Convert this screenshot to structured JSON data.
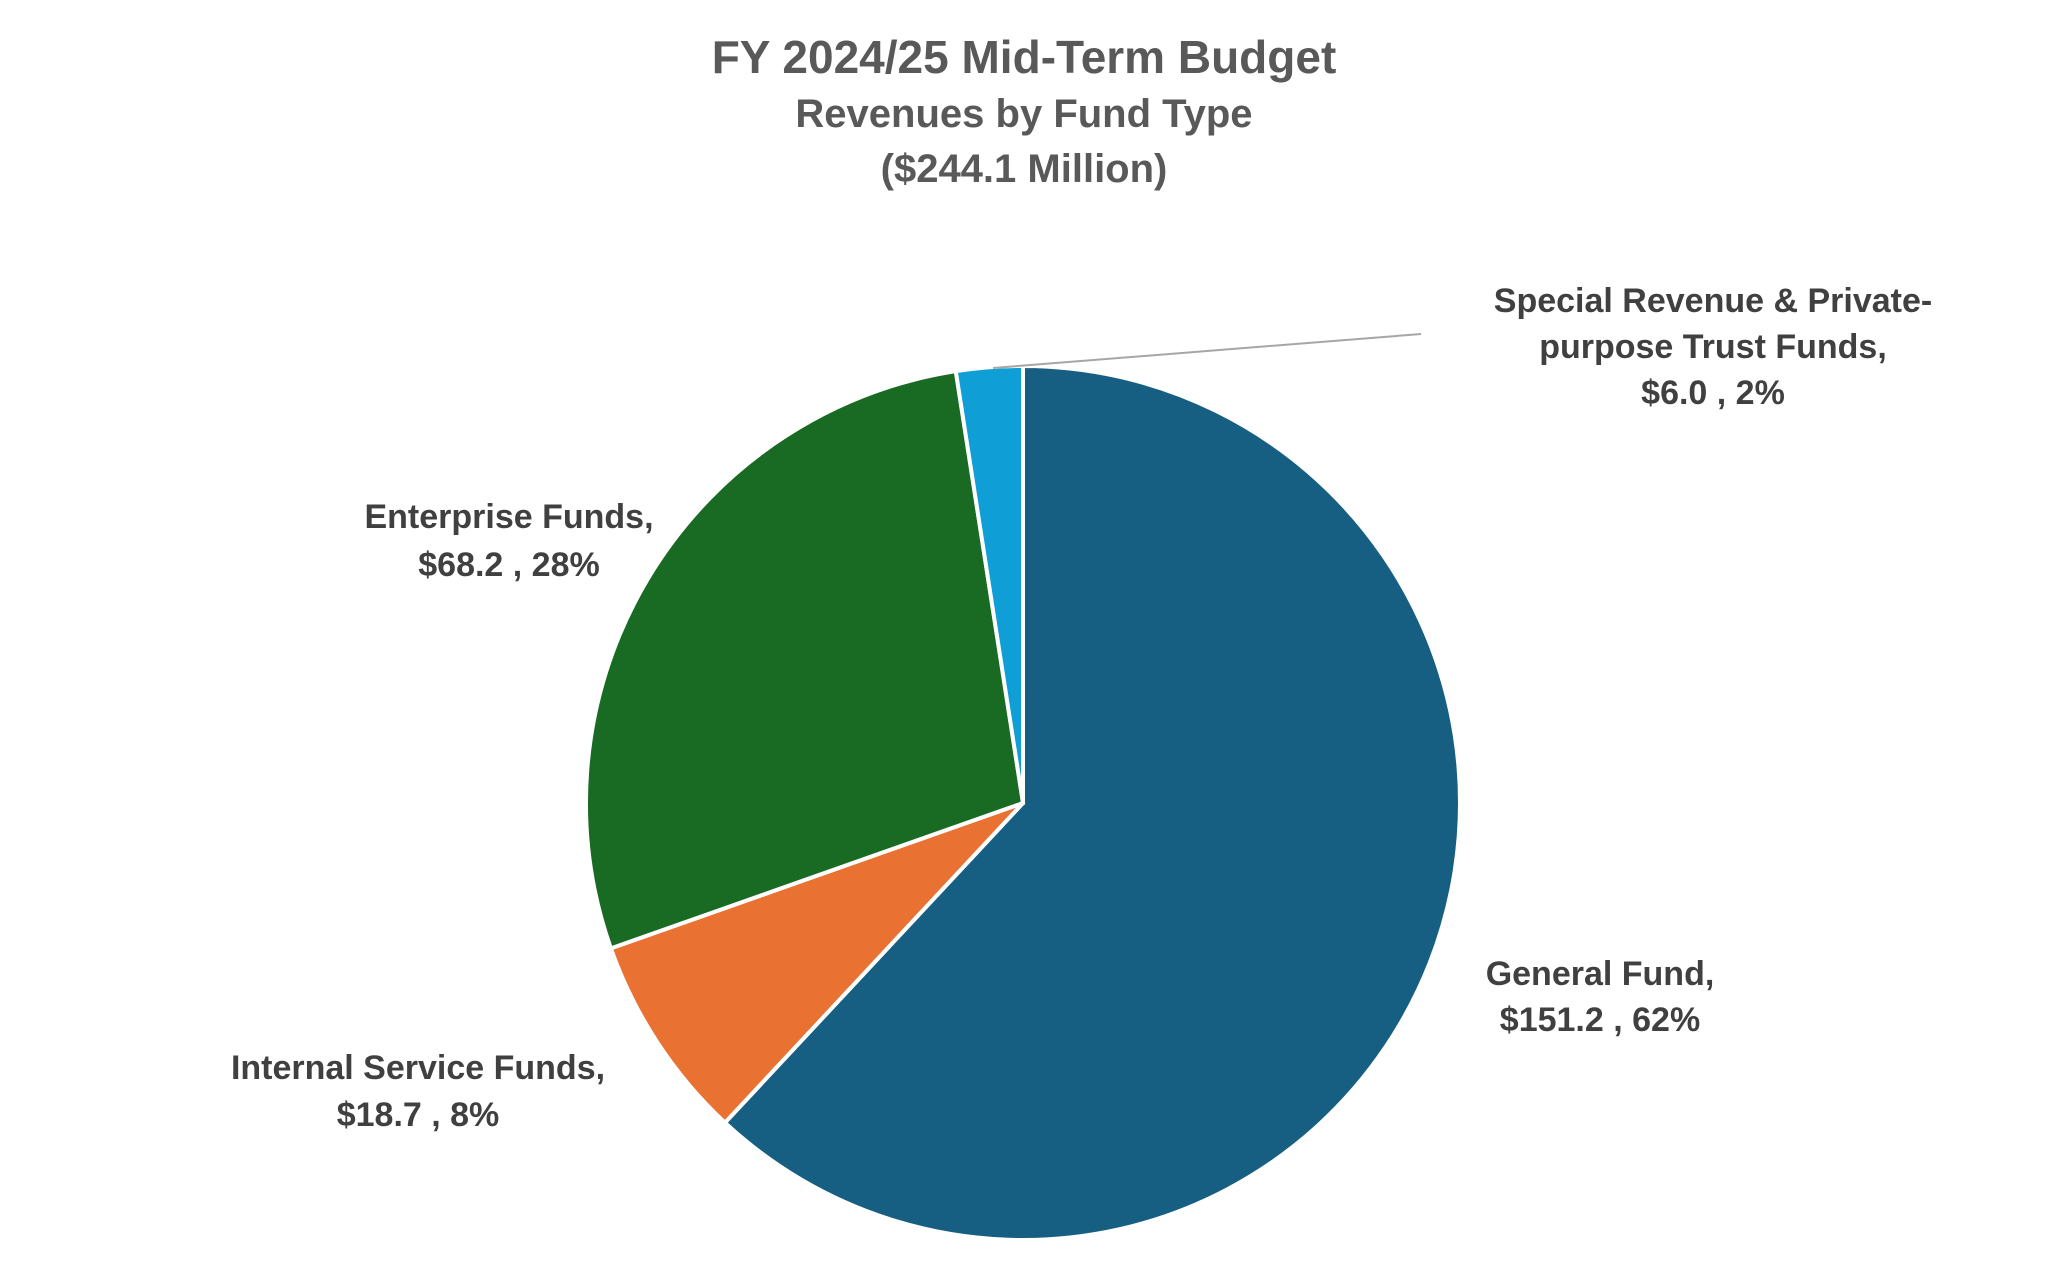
{
  "chart_data": {
    "type": "pie",
    "title": "FY 2024/25 Mid-Term Budget",
    "subtitle": "Revenues by Fund Type",
    "total_label": "($244.1 Million)",
    "start_angle": "12 o'clock, clockwise",
    "slices": [
      {
        "name": "General Fund",
        "value": 151.2,
        "percent": 62,
        "color": "#175F82",
        "label_lines": [
          "General Fund,",
          "$151.2 , 62%"
        ]
      },
      {
        "name": "Internal Service Funds",
        "value": 18.7,
        "percent": 8,
        "color": "#E97132",
        "label_lines": [
          "Internal Service Funds,",
          "$18.7 , 8%"
        ]
      },
      {
        "name": "Enterprise Funds",
        "value": 68.2,
        "percent": 28,
        "color": "#196B24",
        "label_lines": [
          "Enterprise Funds,",
          "$68.2 , 28%"
        ]
      },
      {
        "name": "Special Revenue & Private-purpose Trust Funds",
        "value": 6.0,
        "percent": 2,
        "color": "#0F9ED5",
        "label_lines": [
          "Special Revenue & Private-",
          "purpose Trust Funds,",
          "$6.0 , 2%"
        ]
      }
    ]
  }
}
